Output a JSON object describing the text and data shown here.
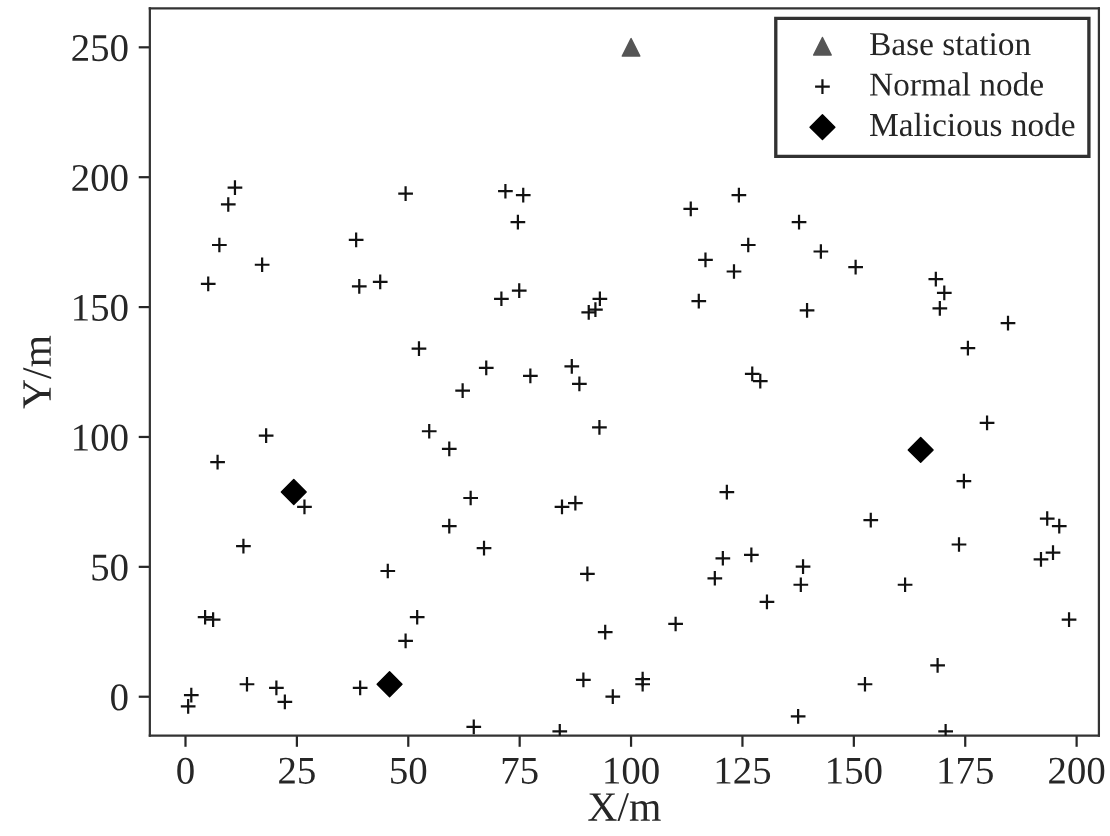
{
  "chart_data": {
    "type": "scatter",
    "xlabel": "X/m",
    "ylabel": "Y/m",
    "xlim": [
      -8,
      205
    ],
    "ylim": [
      -15,
      265
    ],
    "xticks": [
      0,
      25,
      50,
      75,
      100,
      125,
      150,
      175,
      200
    ],
    "yticks": [
      0,
      50,
      100,
      150,
      200,
      250
    ],
    "grid": false,
    "legend": "top right",
    "series": [
      {
        "name": "Base station",
        "color": "#555555",
        "marker": "triangle",
        "x": [
          100
        ],
        "values": [
          250
        ]
      },
      {
        "name": "Normal node",
        "color": "#111111",
        "marker": "cross",
        "x": [
          11.1,
          9.6,
          7.6,
          17.2,
          5.1,
          49.4,
          38.3,
          39.0,
          43.7,
          71.8,
          75.8,
          74.6,
          70.9,
          74.9,
          93.0,
          90.5,
          92.0,
          52.4,
          67.5,
          86.7,
          113.4,
          124.2,
          137.7,
          116.7,
          126.3,
          123.1,
          142.6,
          150.4,
          115.2,
          139.5,
          168.4,
          170.3,
          169.3,
          184.6,
          175.6,
          18.1,
          7.2,
          26.7,
          13.0,
          4.4,
          6.2,
          1.3,
          0.6,
          13.8,
          20.4,
          22.3,
          39.2,
          49.4,
          52.0,
          45.4,
          59.2,
          67.0,
          64.0,
          59.2,
          54.7,
          62.2,
          77.4,
          88.4,
          92.9,
          84.5,
          87.5,
          90.2,
          94.2,
          89.3,
          95.9,
          64.7,
          84.0,
          127.2,
          129.0,
          179.9,
          174.7,
          121.5,
          153.8,
          173.6,
          193.4,
          196.1,
          194.7,
          192.0,
          120.6,
          127.0,
          118.8,
          138.6,
          138.1,
          161.5,
          130.5,
          110.0,
          198.3,
          168.8,
          152.5,
          102.6,
          102.6,
          137.5,
          170.6
        ],
        "values": [
          196.0,
          189.5,
          173.9,
          166.3,
          158.9,
          193.7,
          175.9,
          158.0,
          159.7,
          194.6,
          193.1,
          182.7,
          153.2,
          156.3,
          153.2,
          148,
          149,
          134.0,
          126.6,
          127.2,
          187.8,
          193.1,
          182.7,
          168.2,
          173.9,
          163.7,
          171.4,
          165.4,
          152.3,
          148.7,
          160.8,
          155.5,
          149.5,
          143.8,
          134.2,
          100.5,
          90.3,
          73.1,
          58.0,
          30.6,
          29.7,
          0.6,
          -3.7,
          4.8,
          3.4,
          -2.0,
          3.4,
          21.5,
          30.6,
          48.4,
          65.7,
          57.2,
          76.5,
          95.4,
          102.2,
          117.8,
          123.5,
          120.4,
          103.7,
          73.1,
          74.5,
          47.3,
          24.9,
          6.5,
          0.0,
          -11.6,
          -13.3,
          124.3,
          121.5,
          105.4,
          83.0,
          78.8,
          68.0,
          58.6,
          68.6,
          65.7,
          55.5,
          52.9,
          53.3,
          54.6,
          45.6,
          50.1,
          43.1,
          43.1,
          36.5,
          28.0,
          29.7,
          12.1,
          4.8,
          6.8,
          4.8,
          -7.6,
          -13.3
        ]
      },
      {
        "name": "Malicious node",
        "color": "#000000",
        "marker": "diamond",
        "x": [
          24.3,
          45.8,
          165.0
        ],
        "values": [
          78.8,
          4.8,
          95.0
        ]
      }
    ]
  }
}
